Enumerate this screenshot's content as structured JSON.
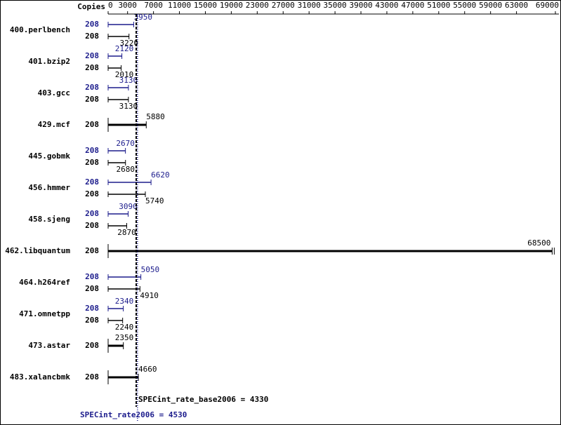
{
  "chart_data": {
    "type": "bar",
    "orientation": "horizontal",
    "copies_header": "Copies",
    "categories": [
      "400.perlbench",
      "401.bzip2",
      "403.gcc",
      "429.mcf",
      "445.gobmk",
      "456.hmmer",
      "458.sjeng",
      "462.libquantum",
      "464.h264ref",
      "471.omnetpp",
      "473.astar",
      "483.xalancbmk"
    ],
    "series": [
      {
        "color": "#1c1c8c",
        "values": [
          3950,
          2120,
          3130,
          null,
          2670,
          6620,
          3090,
          null,
          5050,
          2340,
          null,
          null
        ],
        "copies": [
          208,
          208,
          208,
          null,
          208,
          208,
          208,
          null,
          208,
          208,
          null,
          null
        ]
      },
      {
        "color": "#000000",
        "values": [
          3220,
          2010,
          3130,
          5880,
          2680,
          5740,
          2870,
          68500,
          4910,
          2240,
          2350,
          4660
        ],
        "copies": [
          208,
          208,
          208,
          208,
          208,
          208,
          208,
          208,
          208,
          208,
          208,
          208
        ]
      }
    ],
    "xlim": [
      0,
      69000
    ],
    "xticks": [
      0,
      3000,
      7000,
      11000,
      15000,
      19000,
      23000,
      27000,
      31000,
      35000,
      39000,
      43000,
      47000,
      51000,
      55000,
      59000,
      63000,
      69000
    ],
    "reference_lines": [
      {
        "label": "SPECint_rate_base2006 = 4330",
        "value": 4330,
        "color": "#000000"
      },
      {
        "label": "SPECint_rate2006 = 4530",
        "value": 4530,
        "color": "#1c1c8c"
      }
    ]
  }
}
